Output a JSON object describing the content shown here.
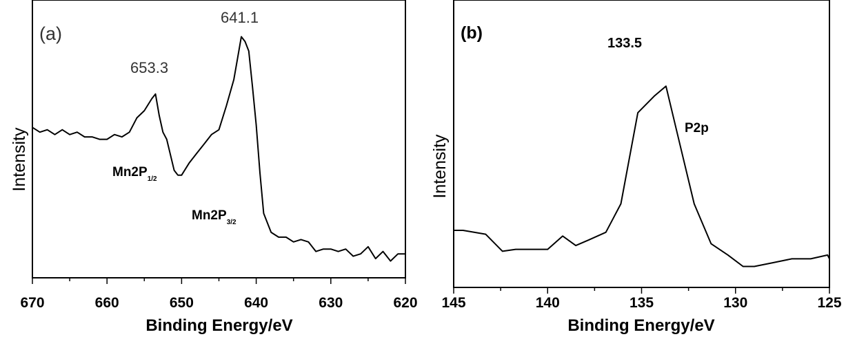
{
  "chart_data": [
    {
      "type": "line",
      "panel_label": "(a)",
      "xlabel": "Binding Energy/eV",
      "ylabel": "Intensity",
      "xlim": [
        670,
        620
      ],
      "ylim": [
        0,
        100
      ],
      "x_ticks": [
        "670",
        "660",
        "650",
        "640",
        "630",
        "620"
      ],
      "x_tick_values": [
        670,
        660,
        650,
        640,
        630,
        620
      ],
      "annotations": [
        {
          "id": "peak-653",
          "text": "653.3",
          "x": 653.3
        },
        {
          "id": "peak-641",
          "text": "641.1",
          "x": 641.1
        },
        {
          "id": "mn-half",
          "text": "Mn2P",
          "sub": "1/2"
        },
        {
          "id": "mn-threehalf",
          "text": "Mn2P",
          "sub": "3/2"
        }
      ],
      "series": [
        {
          "x": [
            670,
            669,
            668,
            667,
            666,
            665,
            664,
            663,
            662,
            661,
            660,
            659,
            658,
            657,
            656,
            655,
            654,
            653.5,
            653,
            652.5,
            652,
            651,
            650.5,
            650,
            649,
            648,
            647,
            646,
            645,
            644,
            643,
            642.5,
            642,
            641.5,
            641,
            640.5,
            640,
            639.5,
            639,
            638,
            637,
            636,
            635,
            634,
            633,
            632,
            631,
            630,
            629,
            628,
            627,
            626,
            625,
            624,
            623,
            622,
            621,
            620
          ],
          "y": [
            59,
            57,
            58,
            56,
            58,
            56,
            57,
            55,
            55,
            54,
            54,
            56,
            55,
            57,
            63,
            66,
            71,
            73,
            64,
            57,
            54,
            41,
            39,
            39,
            44,
            48,
            52,
            56,
            58,
            68,
            79,
            88,
            97,
            95,
            91,
            76,
            60,
            40,
            23,
            15,
            13,
            13,
            11,
            12,
            11,
            7,
            8,
            8,
            7,
            8,
            5,
            6,
            9,
            4,
            7,
            3,
            6,
            6
          ]
        }
      ]
    },
    {
      "type": "line",
      "panel_label": "(b)",
      "xlabel": "Binding Energy/eV",
      "ylabel": "Intensity",
      "xlim": [
        145,
        125
      ],
      "ylim": [
        0,
        100
      ],
      "x_ticks": [
        "145",
        "140",
        "135",
        "130",
        "125"
      ],
      "x_tick_values": [
        145,
        140,
        135,
        130,
        125
      ],
      "annotations": [
        {
          "id": "peak-133",
          "text": "133.5",
          "x": 133.5
        },
        {
          "id": "p2p",
          "text": "P2p"
        }
      ],
      "series": [
        {
          "x": [
            145,
            144.5,
            143.3,
            142.4,
            141.7,
            140,
            139.2,
            138.5,
            137.8,
            136.9,
            136.1,
            135.2,
            134.3,
            133.7,
            133,
            132.2,
            131.3,
            130.4,
            129.6,
            129,
            128,
            127,
            126,
            125.1,
            125
          ],
          "y": [
            21,
            21,
            19,
            10,
            11,
            11,
            18,
            13,
            16,
            20,
            35,
            83,
            92,
            97,
            68,
            35,
            14,
            8,
            2,
            2,
            4,
            6,
            6,
            8,
            6
          ]
        }
      ]
    }
  ]
}
